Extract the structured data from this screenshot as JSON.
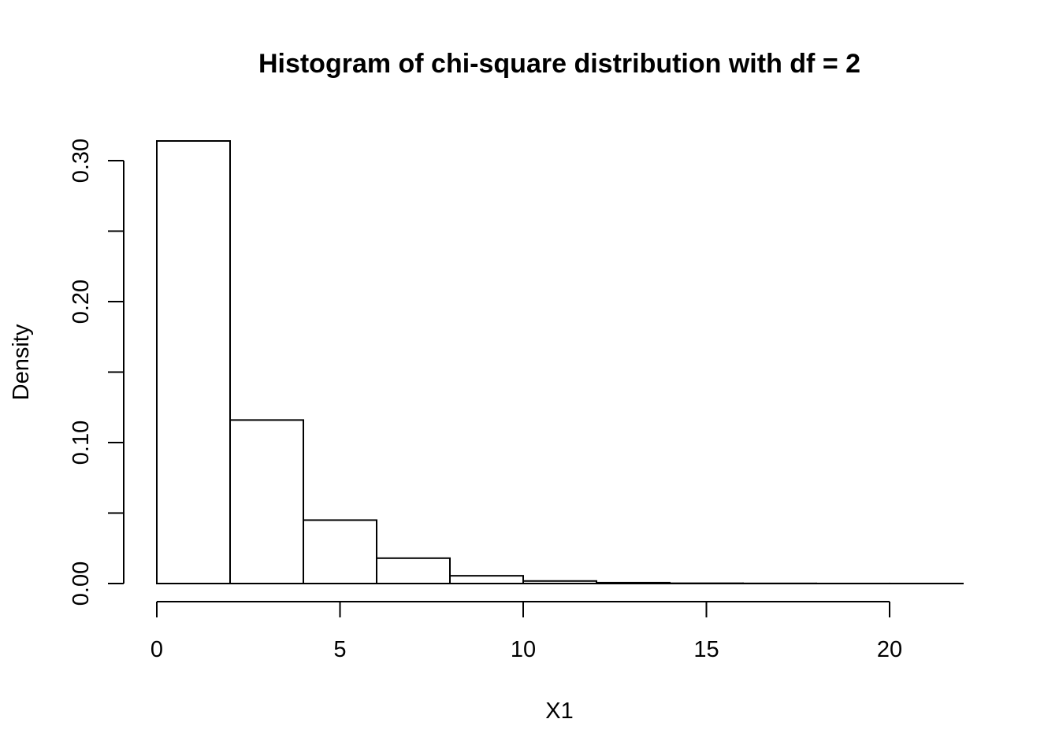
{
  "chart_data": {
    "type": "bar",
    "title": "Histogram of chi-square distribution with df = 2",
    "xlabel": "X1",
    "ylabel": "Density",
    "bin_edges": [
      0,
      2,
      4,
      6,
      8,
      10,
      12,
      14,
      16,
      18,
      20,
      22
    ],
    "values": [
      0.314,
      0.116,
      0.045,
      0.018,
      0.0055,
      0.0018,
      0.0006,
      0.0002,
      0.0001,
      3e-05,
      2e-05
    ],
    "xlim": [
      0,
      22
    ],
    "ylim": [
      0,
      0.314
    ],
    "x_ticks": [
      0,
      5,
      10,
      15,
      20
    ],
    "x_tick_labels": [
      "0",
      "5",
      "10",
      "15",
      "20"
    ],
    "y_ticks": [
      0,
      0.05,
      0.1,
      0.15,
      0.2,
      0.25,
      0.3
    ],
    "y_tick_labels": [
      "0.00",
      "",
      "0.10",
      "",
      "0.20",
      "",
      "0.30"
    ],
    "grid": false,
    "legend": "none",
    "bar_fill": "#ffffff",
    "bar_stroke": "#000000"
  }
}
